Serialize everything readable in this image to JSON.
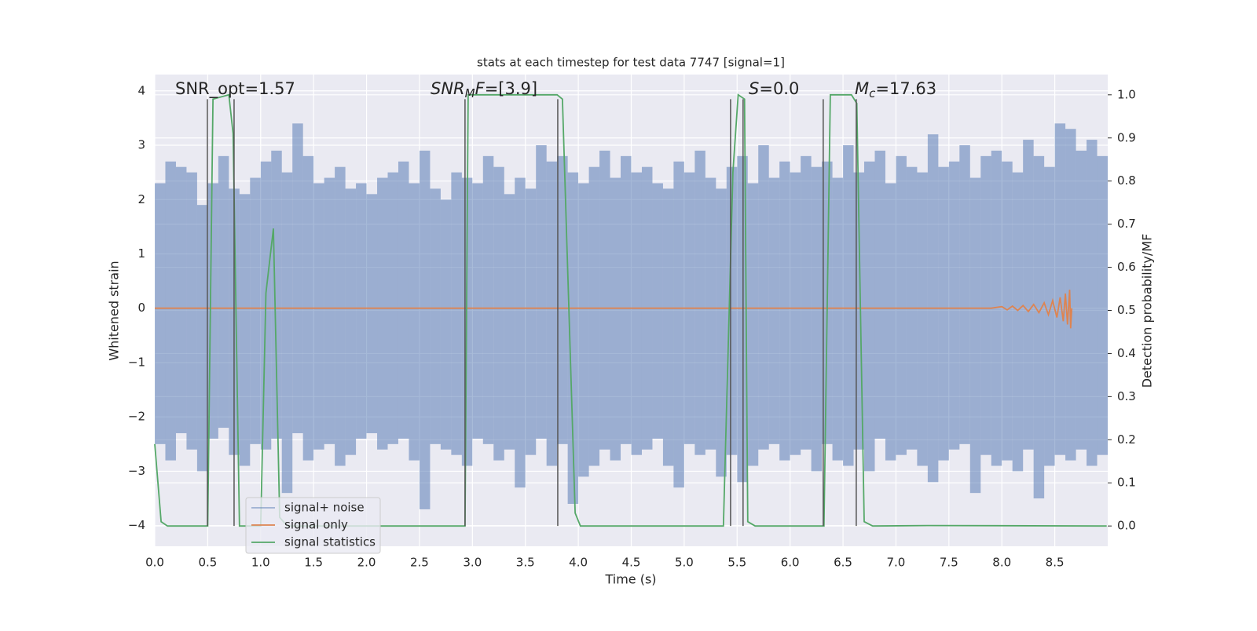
{
  "chart_data": {
    "type": "line",
    "title": "stats at each timestep for test data 7747 [signal=1]",
    "x_label": "Time (s)",
    "y_label": "Whitened strain",
    "y2_label": "Detection probability/MF",
    "xlim": [
      0,
      9.0
    ],
    "ylim": [
      -4.38,
      4.3
    ],
    "y2lim": [
      -0.047,
      1.047
    ],
    "grid": true,
    "legend": "lower left",
    "xticks": [
      {
        "value": 0,
        "label": "0.0"
      },
      0.5,
      {
        "value": 1,
        "label": "1.0"
      },
      1.5,
      {
        "value": 2,
        "label": "2.0"
      },
      2.5,
      {
        "value": 3,
        "label": "3.0"
      },
      3.5,
      {
        "value": 4,
        "label": "4.0"
      },
      4.5,
      {
        "value": 5,
        "label": "5.0"
      },
      5.5,
      {
        "value": 6,
        "label": "6.0"
      },
      6.5,
      {
        "value": 7,
        "label": "7.0"
      },
      7.5,
      {
        "value": 8,
        "label": "8.0"
      },
      8.5
    ],
    "yticks": [
      {
        "value": -4,
        "label": "−4"
      },
      {
        "value": -3,
        "label": "−3"
      },
      {
        "value": -2,
        "label": "−2"
      },
      {
        "value": -1,
        "label": "−1"
      },
      0,
      1,
      2,
      3,
      4
    ],
    "y2ticks": [
      {
        "value": 0,
        "label": "0.0"
      },
      0.1,
      0.2,
      0.3,
      0.4,
      0.5,
      0.6,
      0.7,
      0.8,
      0.9,
      {
        "value": 1,
        "label": "1.0"
      }
    ],
    "noise": {
      "name": "signal+ noise",
      "color": "#4c72b0",
      "x": [
        0,
        0.1,
        0.2,
        0.3,
        0.4,
        0.5,
        0.6,
        0.7,
        0.8,
        0.9,
        1,
        1.1,
        1.2,
        1.3,
        1.4,
        1.5,
        1.6,
        1.7,
        1.8,
        1.9,
        2,
        2.1,
        2.2,
        2.3,
        2.4,
        2.5,
        2.6,
        2.7,
        2.8,
        2.9,
        3,
        3.1,
        3.2,
        3.3,
        3.4,
        3.5,
        3.6,
        3.7,
        3.8,
        3.9,
        4,
        4.1,
        4.2,
        4.3,
        4.4,
        4.5,
        4.6,
        4.7,
        4.8,
        4.9,
        5,
        5.1,
        5.2,
        5.3,
        5.4,
        5.5,
        5.6,
        5.7,
        5.8,
        5.9,
        6,
        6.1,
        6.2,
        6.3,
        6.4,
        6.5,
        6.6,
        6.7,
        6.8,
        6.9,
        7,
        7.1,
        7.2,
        7.3,
        7.4,
        7.5,
        7.6,
        7.7,
        7.8,
        7.9,
        8,
        8.1,
        8.2,
        8.3,
        8.4,
        8.5,
        8.6,
        8.7,
        8.8,
        8.9
      ],
      "high": [
        2.3,
        2.7,
        2.6,
        2.5,
        1.9,
        2.3,
        2.8,
        2.2,
        2.1,
        2.4,
        2.7,
        2.9,
        2.5,
        3.4,
        2.8,
        2.3,
        2.4,
        2.6,
        2.2,
        2.3,
        2.1,
        2.4,
        2.5,
        2.7,
        2.3,
        2.9,
        2.2,
        2.0,
        2.5,
        2.4,
        2.3,
        2.8,
        2.6,
        2.1,
        2.4,
        2.2,
        3.0,
        2.7,
        2.8,
        2.5,
        2.3,
        2.6,
        2.9,
        2.4,
        2.8,
        2.5,
        2.6,
        2.3,
        2.2,
        2.7,
        2.5,
        2.9,
        2.4,
        2.2,
        2.6,
        2.8,
        2.3,
        3.0,
        2.4,
        2.7,
        2.5,
        2.8,
        2.6,
        2.7,
        2.4,
        3.0,
        2.5,
        2.7,
        2.9,
        2.3,
        2.8,
        2.6,
        2.5,
        3.2,
        2.6,
        2.7,
        3.0,
        2.4,
        2.8,
        2.9,
        2.7,
        2.5,
        3.1,
        2.8,
        2.6,
        3.4,
        3.3,
        2.9,
        3.1,
        2.8
      ],
      "low": [
        -2.5,
        -2.8,
        -2.3,
        -2.6,
        -3.0,
        -2.4,
        -2.2,
        -2.7,
        -2.9,
        -2.5,
        -2.6,
        -2.4,
        -3.4,
        -2.3,
        -2.8,
        -2.6,
        -2.5,
        -2.9,
        -2.7,
        -2.4,
        -2.3,
        -2.6,
        -2.5,
        -2.4,
        -2.8,
        -3.7,
        -2.5,
        -2.6,
        -2.7,
        -2.9,
        -2.4,
        -2.5,
        -2.8,
        -2.6,
        -3.3,
        -2.7,
        -2.4,
        -2.9,
        -2.5,
        -3.6,
        -3.1,
        -2.9,
        -2.6,
        -2.8,
        -2.5,
        -2.7,
        -2.6,
        -2.4,
        -2.9,
        -3.3,
        -2.5,
        -2.7,
        -2.6,
        -3.1,
        -2.7,
        -3.2,
        -2.9,
        -2.6,
        -2.5,
        -2.8,
        -2.7,
        -2.6,
        -3.0,
        -2.5,
        -2.8,
        -2.9,
        -2.6,
        -3.0,
        -2.4,
        -2.8,
        -2.7,
        -2.6,
        -2.9,
        -3.2,
        -2.8,
        -2.6,
        -2.5,
        -3.4,
        -2.7,
        -2.9,
        -2.8,
        -3.0,
        -2.6,
        -3.5,
        -2.9,
        -2.7,
        -2.8,
        -2.6,
        -2.9,
        -2.7
      ]
    },
    "series": [
      {
        "name": "signal only",
        "color": "#dd8452",
        "axis": "y",
        "x": [
          0,
          7.9,
          8.0,
          8.05,
          8.1,
          8.15,
          8.2,
          8.25,
          8.3,
          8.35,
          8.4,
          8.44,
          8.48,
          8.52,
          8.55,
          8.58,
          8.6,
          8.62,
          8.64,
          8.65,
          8.66
        ],
        "values": [
          0,
          0,
          0.03,
          -0.03,
          0.04,
          -0.04,
          0.05,
          -0.06,
          0.07,
          -0.08,
          0.1,
          -0.12,
          0.14,
          -0.17,
          0.2,
          -0.24,
          0.27,
          -0.3,
          0.34,
          -0.37,
          0
        ]
      },
      {
        "name": "signal statistics",
        "color": "#55a868",
        "axis": "y2",
        "x": [
          0,
          0.06,
          0.12,
          0.5,
          0.55,
          0.7,
          0.74,
          0.8,
          1.0,
          1.05,
          1.12,
          1.18,
          1.25,
          2.93,
          2.96,
          3.8,
          3.85,
          3.97,
          4.02,
          5.37,
          5.46,
          5.51,
          5.57,
          5.6,
          5.67,
          6.32,
          6.38,
          6.58,
          6.63,
          6.7,
          6.78,
          7.3,
          8.99
        ],
        "values": [
          0.19,
          0.01,
          0,
          0,
          0.99,
          1.0,
          0.91,
          0,
          0,
          0.54,
          0.69,
          0.02,
          0,
          0,
          1.0,
          1.0,
          0.99,
          0.03,
          0,
          0,
          0.82,
          1.0,
          0.99,
          0.01,
          0,
          0,
          1.0,
          1.0,
          0.98,
          0.01,
          0,
          0.001,
          0
        ]
      }
    ],
    "vlines": [
      0.497,
      0.749,
      2.93,
      3.806,
      5.438,
      5.556,
      6.313,
      6.625
    ],
    "annotations": [
      {
        "text": "SNR_opt=1.57"
      },
      {
        "math": "SNR",
        "sub": "M",
        "math2": "F",
        "text": "=[3.9]"
      },
      {
        "math": "S",
        "text": "=0.0"
      },
      {
        "math": "M",
        "sub": "c",
        "text": "=17.63"
      }
    ]
  }
}
